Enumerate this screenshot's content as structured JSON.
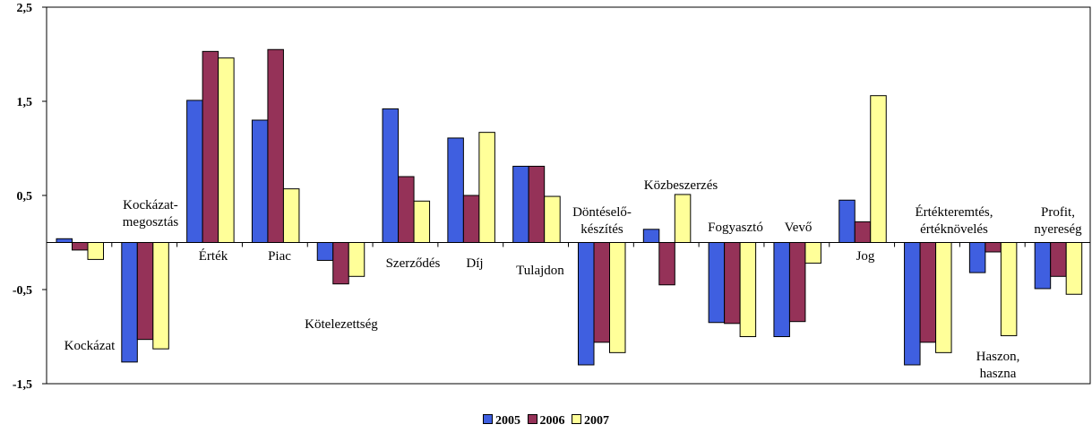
{
  "chart_data": {
    "type": "bar",
    "ylim": [
      -1.5,
      2.5
    ],
    "yticks": [
      "2,5",
      "1,5",
      "0,5",
      "-0,5",
      "-1,5"
    ],
    "ytick_values": [
      2.5,
      1.5,
      0.5,
      -0.5,
      -1.5
    ],
    "grid": false,
    "legend_position": "bottom",
    "categories": [
      [
        "Kockázat"
      ],
      [
        "Kockázat-",
        "megosztás"
      ],
      [
        "Érték"
      ],
      [
        "Piac"
      ],
      [
        "Kötelezettség"
      ],
      [
        "Szerződés"
      ],
      [
        "Díj"
      ],
      [
        "Tulajdon"
      ],
      [
        "Döntéselő-",
        "készítés"
      ],
      [
        "Közbeszerzés"
      ],
      [
        "Fogyasztó"
      ],
      [
        "Vevő"
      ],
      [
        "Jog"
      ],
      [
        "Értékteremtés,",
        "értéknövelés"
      ],
      [
        "Haszon,",
        "haszna"
      ],
      [
        "Profit,",
        "nyereség"
      ]
    ],
    "series": [
      {
        "name": "2005",
        "color": "#3f5fe0",
        "values": [
          0.04,
          -1.27,
          1.51,
          1.3,
          -0.19,
          1.42,
          1.11,
          0.81,
          -1.3,
          0.14,
          -0.85,
          -1.0,
          0.45,
          -1.3,
          -0.32,
          -0.49
        ]
      },
      {
        "name": "2006",
        "color": "#953258",
        "values": [
          -0.08,
          -1.03,
          2.03,
          2.05,
          -0.44,
          0.7,
          0.5,
          0.81,
          -1.06,
          -0.45,
          -0.86,
          -0.84,
          0.22,
          -1.06,
          -0.1,
          -0.36
        ]
      },
      {
        "name": "2007",
        "color": "#ffff99",
        "values": [
          -0.18,
          -1.13,
          1.96,
          0.57,
          -0.36,
          0.44,
          1.17,
          0.49,
          -1.17,
          0.51,
          -1.0,
          -0.22,
          1.56,
          -1.17,
          -0.99,
          -0.55
        ]
      }
    ]
  }
}
